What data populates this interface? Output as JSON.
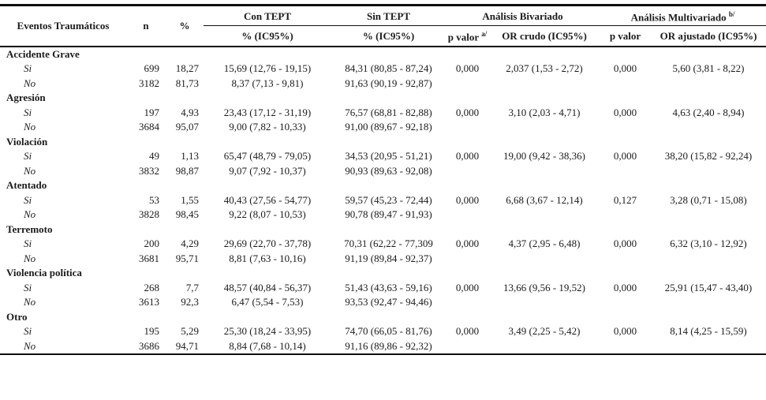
{
  "page": {
    "background_color": "#ffffff",
    "text_color": "#1b1b1b",
    "rule_color": "#0e0e0e"
  },
  "table": {
    "headers": {
      "col_event": "Eventos Traumáticos",
      "col_n": "n",
      "col_pct": "%",
      "group_con_tept": "Con TEPT",
      "group_sin_tept": "Sin TEPT",
      "group_bivariate": "Análisis Bivariado",
      "group_multivariate": "Análisis Multivariado ",
      "group_multivariate_sup": "b/",
      "sub_con_tept": "% (IC95%)",
      "sub_sin_tept": "% (IC95%)",
      "sub_p_value_bi": "p valor ",
      "sub_p_value_bi_sup": "a/",
      "sub_or_crude": "OR crudo (IC95%)",
      "sub_p_value_multi": "p valor",
      "sub_or_adjusted": "OR ajustado (IC95%)"
    },
    "groups": [
      {
        "label": "Accidente Grave",
        "rows": [
          {
            "label": "Si",
            "n": "699",
            "pct": "18,27",
            "con_tept": "15,69 (12,76 - 19,15)",
            "sin_tept": "84,31 (80,85 - 87,24)",
            "p_bivariate": "0,000",
            "or_crude": "2,037 (1,53 - 2,72)",
            "p_multivariate": "0,000",
            "or_adjusted": "5,60 (3,81 - 8,22)"
          },
          {
            "label": "No",
            "n": "3182",
            "pct": "81,73",
            "con_tept": "8,37 (7,13 - 9,81)",
            "sin_tept": "91,63 (90,19 - 92,87)",
            "p_bivariate": "",
            "or_crude": "",
            "p_multivariate": "",
            "or_adjusted": ""
          }
        ]
      },
      {
        "label": "Agresión",
        "rows": [
          {
            "label": "Si",
            "n": "197",
            "pct": "4,93",
            "con_tept": "23,43 (17,12 - 31,19)",
            "sin_tept": "76,57 (68,81 - 82,88)",
            "p_bivariate": "0,000",
            "or_crude": "3,10 (2,03 - 4,71)",
            "p_multivariate": "0,000",
            "or_adjusted": "4,63 (2,40 - 8,94)"
          },
          {
            "label": "No",
            "n": "3684",
            "pct": "95,07",
            "con_tept": "9,00 (7,82 - 10,33)",
            "sin_tept": "91,00 (89,67 - 92,18)",
            "p_bivariate": "",
            "or_crude": "",
            "p_multivariate": "",
            "or_adjusted": ""
          }
        ]
      },
      {
        "label": "Violación",
        "rows": [
          {
            "label": "Si",
            "n": "49",
            "pct": "1,13",
            "con_tept": "65,47 (48,79 - 79,05)",
            "sin_tept": "34,53 (20,95 - 51,21)",
            "p_bivariate": "0,000",
            "or_crude": "19,00 (9,42 - 38,36)",
            "p_multivariate": "0,000",
            "or_adjusted": "38,20 (15,82 - 92,24)"
          },
          {
            "label": "No",
            "n": "3832",
            "pct": "98,87",
            "con_tept": "9,07 (7,92 - 10,37)",
            "sin_tept": "90,93 (89,63 - 92,08)",
            "p_bivariate": "",
            "or_crude": "",
            "p_multivariate": "",
            "or_adjusted": ""
          }
        ]
      },
      {
        "label": "Atentado",
        "rows": [
          {
            "label": "Si",
            "n": "53",
            "pct": "1,55",
            "con_tept": "40,43 (27,56 - 54,77)",
            "sin_tept": "59,57 (45,23 - 72,44)",
            "p_bivariate": "0,000",
            "or_crude": "6,68 (3,67 - 12,14)",
            "p_multivariate": "0,127",
            "or_adjusted": "3,28 (0,71 - 15,08)"
          },
          {
            "label": "No",
            "n": "3828",
            "pct": "98,45",
            "con_tept": "9,22 (8,07 - 10,53)",
            "sin_tept": "90,78 (89,47 - 91,93)",
            "p_bivariate": "",
            "or_crude": "",
            "p_multivariate": "",
            "or_adjusted": ""
          }
        ]
      },
      {
        "label": "Terremoto",
        "rows": [
          {
            "label": "Si",
            "n": "200",
            "pct": "4,29",
            "con_tept": "29,69 (22,70 - 37,78)",
            "sin_tept": "70,31 (62,22 - 77,309",
            "p_bivariate": "0,000",
            "or_crude": "4,37 (2,95 - 6,48)",
            "p_multivariate": "0,000",
            "or_adjusted": "6,32 (3,10 - 12,92)"
          },
          {
            "label": "No",
            "n": "3681",
            "pct": "95,71",
            "con_tept": "8,81 (7,63 - 10,16)",
            "sin_tept": "91,19 (89,84 - 92,37)",
            "p_bivariate": "",
            "or_crude": "",
            "p_multivariate": "",
            "or_adjusted": ""
          }
        ]
      },
      {
        "label": "Violencia política",
        "rows": [
          {
            "label": "Si",
            "n": "268",
            "pct": "7,7",
            "con_tept": "48,57 (40,84 - 56,37)",
            "sin_tept": "51,43 (43,63 - 59,16)",
            "p_bivariate": "0,000",
            "or_crude": "13,66 (9,56 - 19,52)",
            "p_multivariate": "0,000",
            "or_adjusted": "25,91 (15,47 - 43,40)"
          },
          {
            "label": "No",
            "n": "3613",
            "pct": "92,3",
            "con_tept": "6,47 (5,54 - 7,53)",
            "sin_tept": "93,53 (92,47 - 94,46)",
            "p_bivariate": "",
            "or_crude": "",
            "p_multivariate": "",
            "or_adjusted": ""
          }
        ]
      },
      {
        "label": "Otro",
        "rows": [
          {
            "label": "Si",
            "n": "195",
            "pct": "5,29",
            "con_tept": "25,30 (18,24 - 33,95)",
            "sin_tept": "74,70 (66,05 - 81,76)",
            "p_bivariate": "0,000",
            "or_crude": "3,49 (2,25 - 5,42)",
            "p_multivariate": "0,000",
            "or_adjusted": "8,14 (4,25 - 15,59)"
          },
          {
            "label": "No",
            "n": "3686",
            "pct": "94,71",
            "con_tept": "8,84 (7,68 - 10,14)",
            "sin_tept": "91,16 (89,86 - 92,32)",
            "p_bivariate": "",
            "or_crude": "",
            "p_multivariate": "",
            "or_adjusted": ""
          }
        ]
      }
    ]
  }
}
